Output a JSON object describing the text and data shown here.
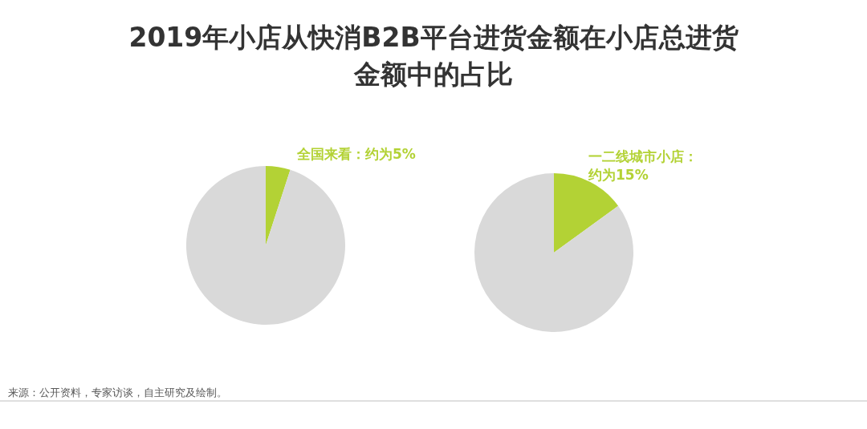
{
  "chart_data": [
    {
      "type": "pie",
      "title": "2019年小店从快消B2B平台进货金额在小店总进货金额中的占比",
      "categories": [
        "全国来看：约为5%",
        null
      ],
      "values": [
        5,
        95
      ],
      "colors": [
        "#b3d235",
        "#d9d9d9"
      ],
      "annotations": [
        "来源：公开资料，专家访谈，自主研究及绘制。"
      ]
    },
    {
      "type": "pie",
      "categories": [
        "一二线城市小店：约为15%",
        null
      ],
      "values": [
        15,
        85
      ],
      "colors": [
        "#b3d235",
        "#d9d9d9"
      ]
    }
  ]
}
